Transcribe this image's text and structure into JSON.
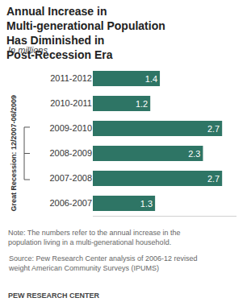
{
  "chart_data": {
    "type": "bar",
    "orientation": "horizontal",
    "title": "Annual Increase in Multi-generational Population Has Diminished in Post-Recession Era",
    "subtitle": "In millions",
    "categories": [
      "2011-2012",
      "2010-2011",
      "2009-2010",
      "2008-2009",
      "2007-2008",
      "2006-2007"
    ],
    "values": [
      1.4,
      1.2,
      2.7,
      2.3,
      2.7,
      1.3
    ],
    "color": "#2e7565",
    "xlim": [
      0,
      3
    ],
    "xticks": [],
    "tick_labels": "y",
    "data_labels": true,
    "grid": false,
    "annotations": [
      {
        "text": "Great Recession: 12/2007-06/2009",
        "categories": [
          "2009-2010",
          "2008-2009",
          "2007-2008"
        ]
      }
    ],
    "note": "Note: The numbers refer to the annual increase in the population living in a multi-generational household.",
    "source": "Source: Pew Research Center analysis of 2006-12 revised weight American Community Surveys (IPUMS)",
    "credit": "PEW RESEARCH CENTER"
  }
}
